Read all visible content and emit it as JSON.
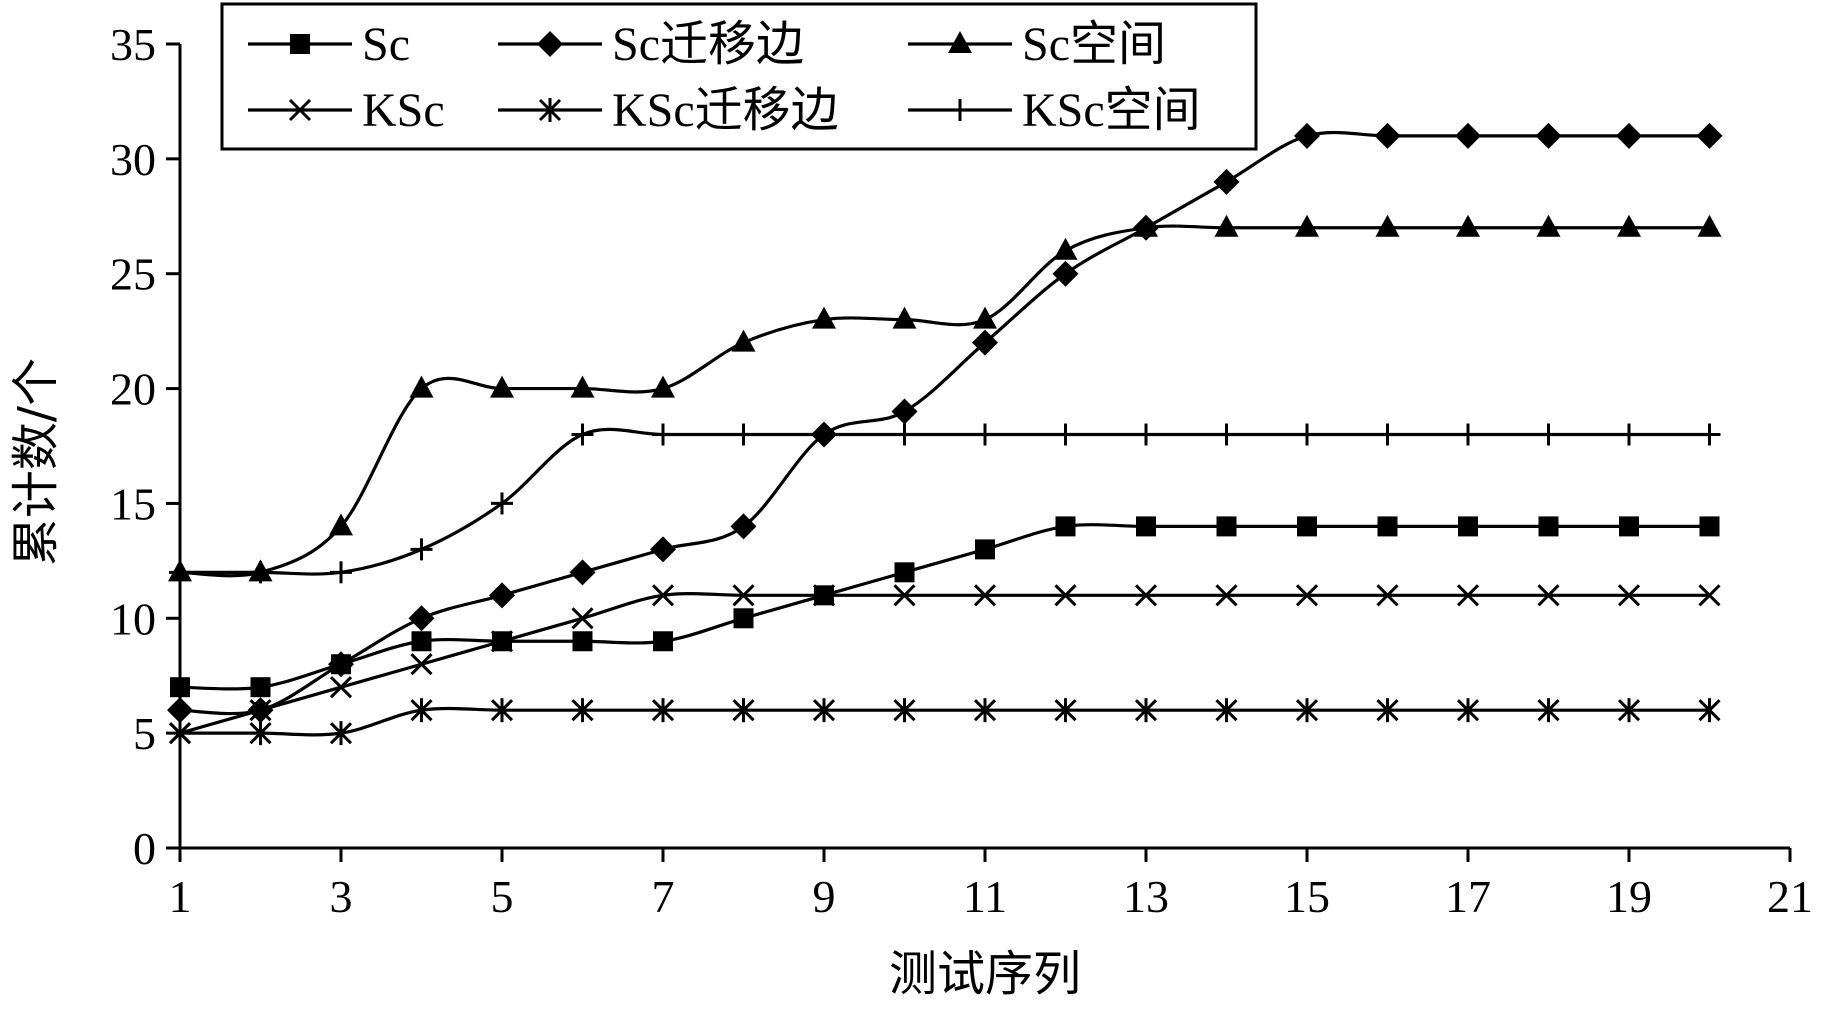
{
  "chart_data": {
    "type": "line",
    "title": "",
    "xlabel": "测试序列",
    "ylabel": "累计数/个",
    "xlim": [
      1,
      21
    ],
    "ylim": [
      0,
      35
    ],
    "xticks": [
      1,
      3,
      5,
      7,
      9,
      11,
      13,
      15,
      17,
      19,
      21
    ],
    "yticks": [
      0,
      5,
      10,
      15,
      20,
      25,
      30,
      35
    ],
    "x": [
      1,
      2,
      3,
      4,
      5,
      6,
      7,
      8,
      9,
      10,
      11,
      12,
      13,
      14,
      15,
      16,
      17,
      18,
      19,
      20
    ],
    "grid": false,
    "legend_position": "top-left",
    "series": [
      {
        "name": "Sc",
        "marker": "square",
        "values": [
          7,
          7,
          8,
          9,
          9,
          9,
          9,
          10,
          11,
          12,
          13,
          14,
          14,
          14,
          14,
          14,
          14,
          14,
          14,
          14
        ]
      },
      {
        "name": "Sc迁移边",
        "marker": "diamond",
        "values": [
          6,
          6,
          8,
          10,
          11,
          12,
          13,
          14,
          18,
          19,
          22,
          25,
          27,
          29,
          31,
          31,
          31,
          31,
          31,
          31
        ]
      },
      {
        "name": "Sc空间",
        "marker": "triangle",
        "values": [
          12,
          12,
          14,
          20,
          20,
          20,
          20,
          22,
          23,
          23,
          23,
          26,
          27,
          27,
          27,
          27,
          27,
          27,
          27,
          27
        ]
      },
      {
        "name": "KSc",
        "marker": "x",
        "values": [
          5,
          6,
          7,
          8,
          9,
          10,
          11,
          11,
          11,
          11,
          11,
          11,
          11,
          11,
          11,
          11,
          11,
          11,
          11,
          11
        ]
      },
      {
        "name": "KSc迁移边",
        "marker": "star",
        "values": [
          5,
          5,
          5,
          6,
          6,
          6,
          6,
          6,
          6,
          6,
          6,
          6,
          6,
          6,
          6,
          6,
          6,
          6,
          6,
          6
        ]
      },
      {
        "name": "KSc空间",
        "marker": "plus",
        "values": [
          12,
          12,
          12,
          13,
          15,
          18,
          18,
          18,
          18,
          18,
          18,
          18,
          18,
          18,
          18,
          18,
          18,
          18,
          18,
          18
        ]
      }
    ]
  }
}
